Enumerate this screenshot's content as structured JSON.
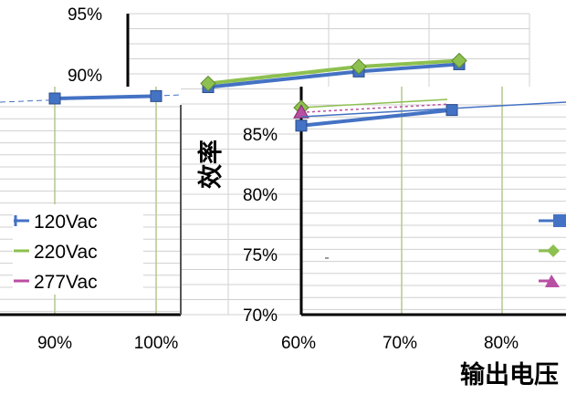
{
  "chart_data": {
    "type": "line",
    "ylabel": "效率",
    "xlabel": "输出电压",
    "y_ticks": [
      "95%",
      "90%",
      "85%",
      "80%",
      "75%",
      "70%"
    ],
    "x_ticks": [
      "90%",
      "100%",
      "60%",
      "70%",
      "80%"
    ],
    "legend": [
      "120Vac",
      "220Vac",
      "277Vac"
    ],
    "colors": {
      "120Vac": "#4472C4",
      "220Vac": "#8DC04F",
      "277Vac": "#B94FA3",
      "grid": "#d0d0d0",
      "axis": "#000000"
    },
    "panels": [
      {
        "name": "background",
        "x_range": [
          50,
          90
        ],
        "y_range": [
          70,
          95
        ],
        "series": [
          {
            "name": "120Vac",
            "x": [
              58,
              73,
              83
            ],
            "y": [
              88.9,
              90.2,
              90.8
            ]
          },
          {
            "name": "220Vac",
            "x": [
              58,
              73,
              83
            ],
            "y": [
              89.2,
              90.6,
              91.1
            ]
          }
        ]
      },
      {
        "name": "middle",
        "x_range": [
          60,
          90
        ],
        "y_range": [
          70,
          90
        ],
        "series": [
          {
            "name": "120Vac",
            "x": [
              60,
              75
            ],
            "y": [
              85.7,
              87.0
            ]
          },
          {
            "name": "220Vac",
            "x": [
              60
            ],
            "y": [
              87.2
            ]
          },
          {
            "name": "277Vac",
            "x": [
              60
            ],
            "y": [
              86.8
            ]
          }
        ]
      },
      {
        "name": "front",
        "x_range": [
          85,
          100
        ],
        "series": [
          {
            "name": "120Vac",
            "x": [
              90,
              100
            ],
            "y": [
              88.0,
              88.2
            ]
          }
        ]
      }
    ]
  }
}
